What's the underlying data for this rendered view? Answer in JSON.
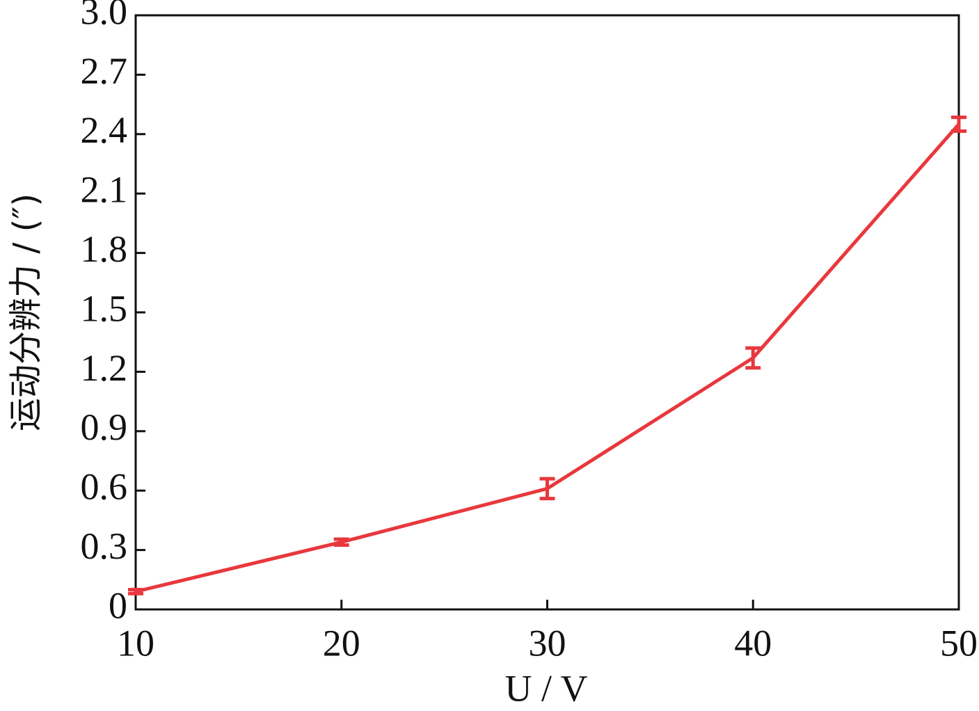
{
  "chart_data": {
    "type": "line",
    "x_label": "U / V",
    "y_label": "运动分辨力 / (″)",
    "x": [
      10,
      20,
      30,
      40,
      50
    ],
    "values": [
      0.09,
      0.34,
      0.61,
      1.27,
      2.45
    ],
    "errors": [
      0.01,
      0.015,
      0.05,
      0.05,
      0.035
    ],
    "color": "#e8383d",
    "xlim": [
      10,
      50
    ],
    "xticks": [
      10,
      20,
      30,
      40,
      50
    ],
    "ylim": [
      0,
      3
    ],
    "yticks": [
      0,
      0.3,
      0.6,
      0.9,
      1.2,
      1.5,
      1.8,
      2.1,
      2.4,
      2.7,
      {
        "value": 3,
        "label": "3.0"
      }
    ],
    "grid": false
  }
}
